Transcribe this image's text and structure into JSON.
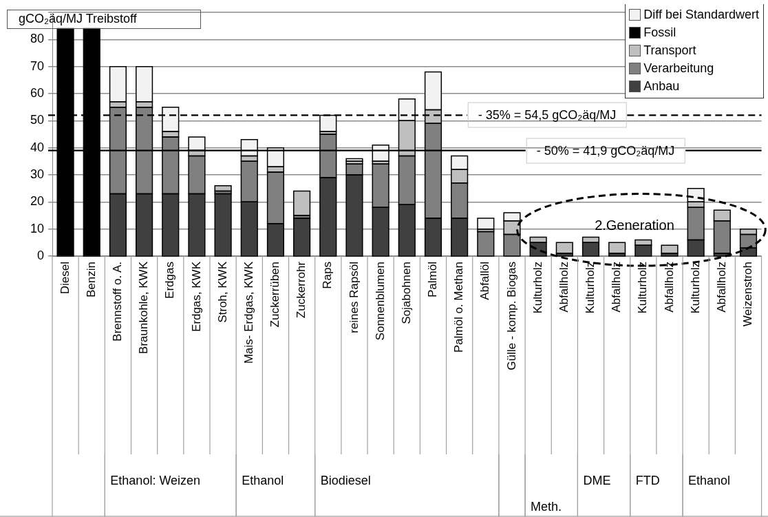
{
  "chart_data": {
    "type": "bar",
    "stacked": true,
    "ylabel": "gCO₂äq/MJ  Treibstoff",
    "categories": [
      "Diesel",
      "Benzin",
      "Brennstoff o. A.",
      "Braunkohle, KWK",
      "Erdgas",
      "Erdgas, KWK",
      "Stroh, KWK",
      "Mais- Erdgas, KWK",
      "Zuckerrüben",
      "Zuckerrohr",
      "Raps",
      "reines Rapsöl",
      "Sonnenblumen",
      "Sojabohnen",
      "Palmöl",
      "Palmöl o. Methan",
      "Abfallöl",
      "Gülle - komp. Biogas",
      "Kulturholz",
      "Abfallholz",
      "Kulturholz",
      "Abfallholz",
      "Kulturholz",
      "Abfallholz",
      "Kulturholz",
      "Abfallholz",
      "Weizenstroh"
    ],
    "series": [
      {
        "name": "Anbau",
        "color": "#404040",
        "values": [
          null,
          null,
          23,
          23,
          23,
          23,
          23,
          20,
          12,
          14,
          29,
          30,
          18,
          19,
          14,
          14,
          null,
          null,
          5,
          1,
          5,
          1,
          4,
          1,
          6,
          1,
          3
        ]
      },
      {
        "name": "Verarbeitung",
        "color": "#808080",
        "values": [
          null,
          null,
          32,
          32,
          21,
          14,
          1,
          15,
          19,
          1,
          16,
          4,
          16,
          18,
          35,
          13,
          9,
          8,
          null,
          null,
          null,
          null,
          null,
          null,
          12,
          12,
          5
        ]
      },
      {
        "name": "Transport",
        "color": "#bfbfbf",
        "values": [
          null,
          null,
          2,
          2,
          2,
          2,
          2,
          2,
          2,
          9,
          1,
          1,
          1,
          13,
          5,
          5,
          1,
          5,
          2,
          4,
          2,
          4,
          2,
          3,
          2,
          4,
          2
        ]
      },
      {
        "name": "Fossil",
        "color": "#000000",
        "values": [
          84,
          84,
          null,
          null,
          null,
          null,
          null,
          null,
          null,
          null,
          null,
          null,
          null,
          null,
          null,
          null,
          null,
          null,
          null,
          null,
          null,
          null,
          null,
          null,
          null,
          null,
          null
        ]
      },
      {
        "name": "Diff bei Standardwert",
        "color": "#f2f2f2",
        "values": [
          null,
          null,
          13,
          13,
          9,
          5,
          null,
          6,
          7,
          null,
          6,
          1,
          6,
          8,
          14,
          5,
          4,
          3,
          null,
          null,
          null,
          null,
          null,
          null,
          5,
          null,
          null
        ]
      }
    ],
    "ylim": [
      0,
      90
    ],
    "yticks": [
      0,
      10,
      20,
      30,
      40,
      50,
      60,
      70,
      80,
      {
        "value": 90,
        "label": null
      }
    ],
    "grid": "y",
    "legend": "top right",
    "ref_lines": [
      {
        "axis": "y",
        "value": 52,
        "line_style": "dashed",
        "color": "#000000"
      },
      {
        "axis": "y",
        "value": 39,
        "line_style": "solid",
        "color": "#000000"
      }
    ],
    "annotations": [
      "2.Generation",
      "Ethanol: Weizen",
      "Ethanol",
      "Biodiesel",
      "Meth.",
      "DME",
      "FTD",
      "Ethanol",
      "- 35% = 54,5 gCO₂äq/MJ",
      "- 50% = 41,9 gCO₂äq/MJ"
    ]
  }
}
